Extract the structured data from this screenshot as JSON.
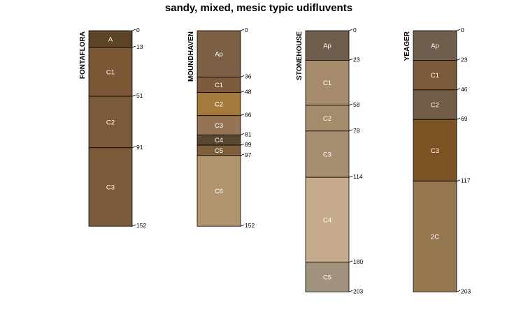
{
  "title": "sandy, mixed, mesic typic udifluvents",
  "profiles": [
    {
      "name": "FONTAFLORA",
      "horizons": [
        {
          "name": "A",
          "top": 0,
          "bottom": 13,
          "color": "#5E4426"
        },
        {
          "name": "C1",
          "top": 13,
          "bottom": 51,
          "color": "#7D5636"
        },
        {
          "name": "C2",
          "top": 51,
          "bottom": 91,
          "color": "#7A5A39"
        },
        {
          "name": "C3",
          "top": 91,
          "bottom": 152,
          "color": "#7B5B3A"
        }
      ]
    },
    {
      "name": "MOUNDHAVEN",
      "horizons": [
        {
          "name": "Ap",
          "top": 0,
          "bottom": 36,
          "color": "#7A5F44"
        },
        {
          "name": "C1",
          "top": 36,
          "bottom": 48,
          "color": "#7C5B3A"
        },
        {
          "name": "C2",
          "top": 48,
          "bottom": 66,
          "color": "#A47A3C"
        },
        {
          "name": "C3",
          "top": 66,
          "bottom": 81,
          "color": "#957456"
        },
        {
          "name": "C4",
          "top": 81,
          "bottom": 89,
          "color": "#5A472F"
        },
        {
          "name": "C5",
          "top": 89,
          "bottom": 97,
          "color": "#7E5E3D"
        },
        {
          "name": "C6",
          "top": 97,
          "bottom": 152,
          "color": "#AF946D"
        }
      ]
    },
    {
      "name": "STONEHOUSE",
      "horizons": [
        {
          "name": "Ap",
          "top": 0,
          "bottom": 23,
          "color": "#6D5D4D"
        },
        {
          "name": "C1",
          "top": 23,
          "bottom": 58,
          "color": "#A68C6C"
        },
        {
          "name": "C2",
          "top": 58,
          "bottom": 78,
          "color": "#A38B6C"
        },
        {
          "name": "C3",
          "top": 78,
          "bottom": 114,
          "color": "#A68F71"
        },
        {
          "name": "C4",
          "top": 114,
          "bottom": 180,
          "color": "#C6AC8C"
        },
        {
          "name": "C5",
          "top": 180,
          "bottom": 203,
          "color": "#A0927D"
        }
      ]
    },
    {
      "name": "YEAGER",
      "horizons": [
        {
          "name": "Ap",
          "top": 0,
          "bottom": 23,
          "color": "#6F5D4D"
        },
        {
          "name": "C1",
          "top": 23,
          "bottom": 46,
          "color": "#7A5A38"
        },
        {
          "name": "C2",
          "top": 46,
          "bottom": 69,
          "color": "#725C46"
        },
        {
          "name": "C3",
          "top": 69,
          "bottom": 117,
          "color": "#7B5221"
        },
        {
          "name": "2C",
          "top": 117,
          "bottom": 203,
          "color": "#95774F"
        }
      ]
    }
  ]
}
